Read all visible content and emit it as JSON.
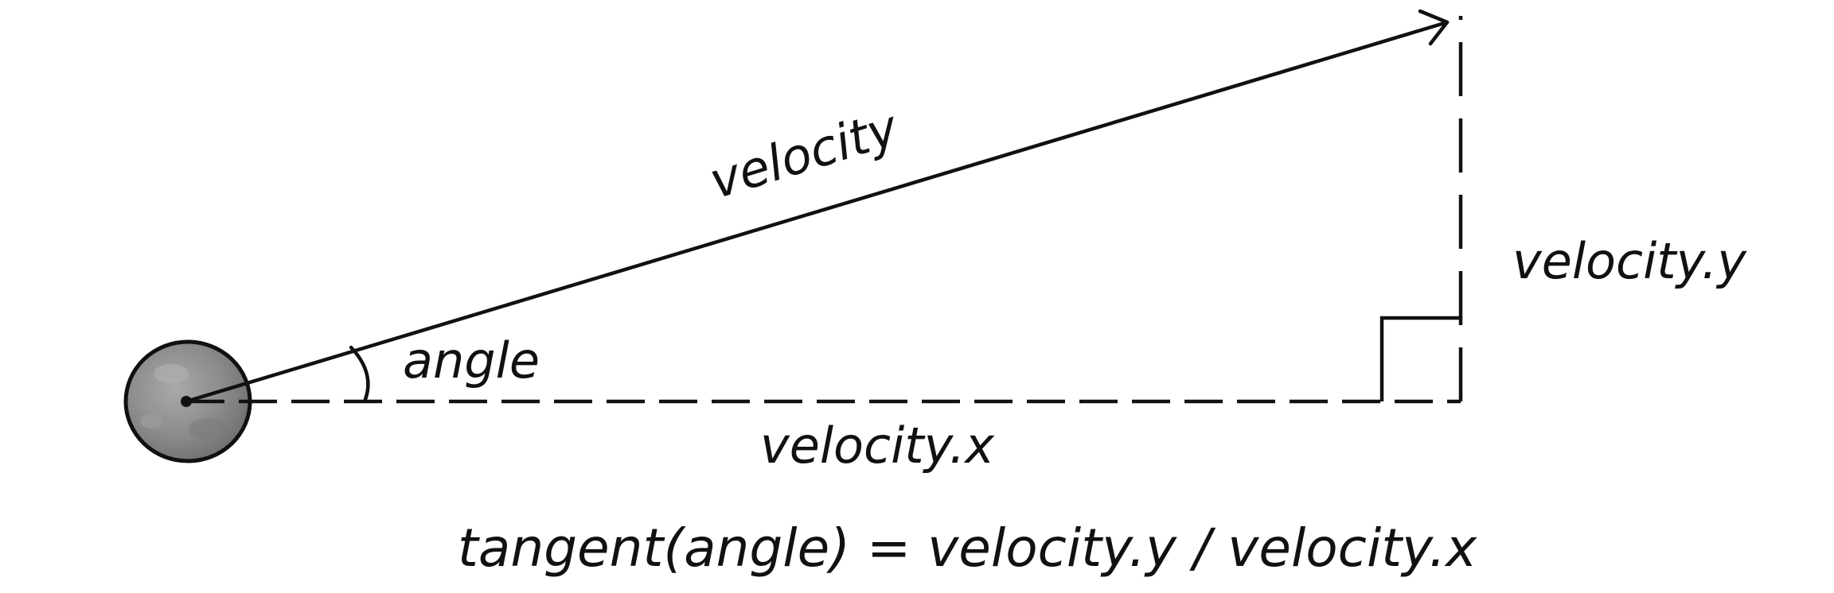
{
  "labels": {
    "velocity": "velocity",
    "angle": "angle",
    "velocity_x": "velocity.x",
    "velocity_y": "velocity.y",
    "formula": "tangent(angle) = velocity.y / velocity.x"
  },
  "colors": {
    "ink": "#111111",
    "ball_fill": "#8e8e8e"
  }
}
